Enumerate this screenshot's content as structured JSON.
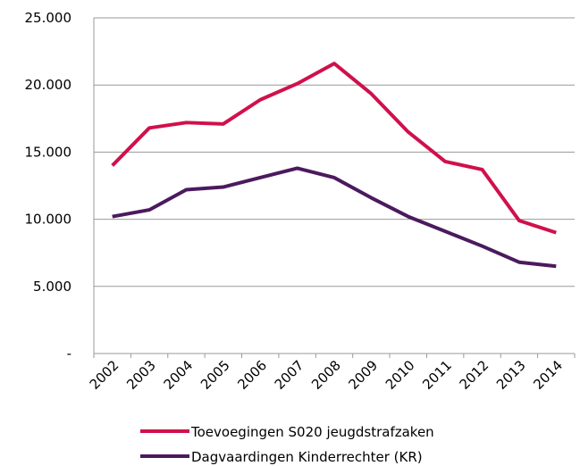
{
  "chart_data": {
    "type": "line",
    "categories": [
      "2002",
      "2003",
      "2004",
      "2005",
      "2006",
      "2007",
      "2008",
      "2009",
      "2010",
      "2011",
      "2012",
      "2013",
      "2014"
    ],
    "series": [
      {
        "name": "Toevoegingen S020 jeugdstrafzaken",
        "color": "#d0104c",
        "values": [
          14000,
          16800,
          17200,
          17100,
          18900,
          20100,
          21600,
          19350,
          16500,
          14300,
          13700,
          9900,
          9000
        ]
      },
      {
        "name": "Dagvaardingen Kinderrechter (KR)",
        "color": "#4b1a5e",
        "values": [
          10200,
          10700,
          12200,
          12400,
          13100,
          13800,
          13100,
          11600,
          10200,
          9100,
          8000,
          6800,
          6500
        ]
      }
    ],
    "ylim": [
      0,
      25000
    ],
    "yticks": [
      {
        "value": 0,
        "label": "-"
      },
      {
        "value": 5000,
        "label": "5.000"
      },
      {
        "value": 10000,
        "label": "10.000"
      },
      {
        "value": 15000,
        "label": "15.000"
      },
      {
        "value": 20000,
        "label": "20.000"
      },
      {
        "value": 25000,
        "label": "25.000"
      }
    ],
    "grid": true
  }
}
